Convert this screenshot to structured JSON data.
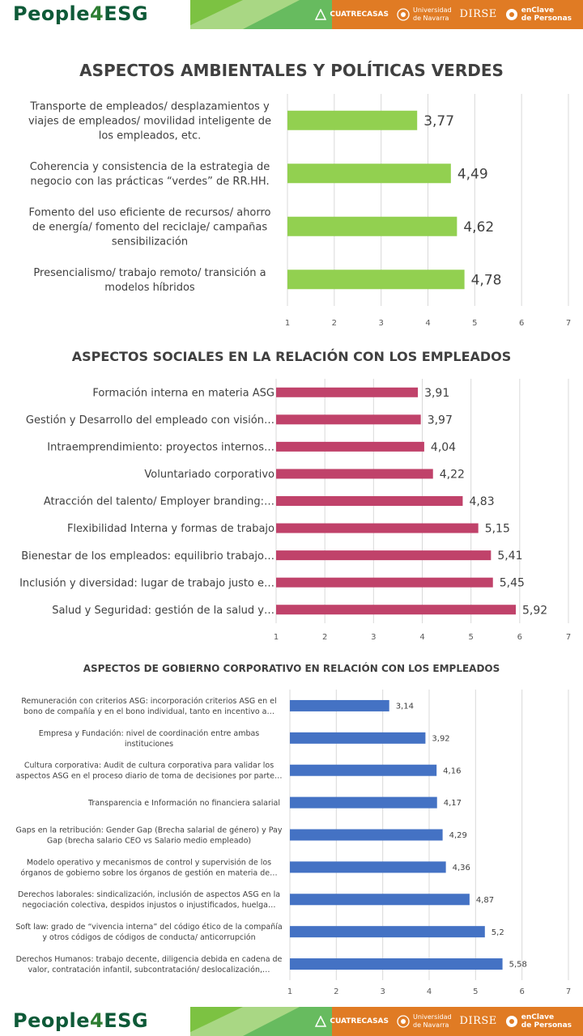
{
  "header": {
    "brand_prefix": "People",
    "brand_digit": "4",
    "brand_suffix": "ESG",
    "partners": [
      {
        "name": "CUATRECASAS",
        "icon": "cuatrecasas-logo-icon"
      },
      {
        "name": "Universidad de Navarra",
        "line1": "Universidad",
        "line2": "de Navarra",
        "icon": "unav-seal-icon"
      },
      {
        "name": "DIRSE"
      },
      {
        "name": "enClave de Personas",
        "line1": "enClave",
        "line2": "de Personas",
        "icon": "enclave-logo-icon"
      }
    ],
    "colors": {
      "green": "#0e5a38",
      "light_green": "#7cc242",
      "orange": "#e07b24"
    }
  },
  "chart_data": [
    {
      "type": "bar",
      "orientation": "horizontal",
      "title": "ASPECTOS AMBIENTALES Y POLÍTICAS VERDES",
      "color": "#92d050",
      "xlim": [
        1,
        7
      ],
      "xticks": [
        "1",
        "2",
        "3",
        "4",
        "5",
        "6",
        "7"
      ],
      "grid": true,
      "categories": [
        [
          "Transporte de empleados/ desplazamientos y",
          "viajes de empleados/ movilidad inteligente de",
          "los empleados, etc."
        ],
        [
          "Coherencia y consistencia de la estrategia de",
          "negocio con las prácticas “verdes” de RR.HH."
        ],
        [
          "Fomento del uso eficiente de recursos/ ahorro",
          "de energía/ fomento del reciclaje/ campañas",
          "sensibilización"
        ],
        [
          "Presencialismo/ trabajo remoto/ transición a",
          "modelos híbridos"
        ]
      ],
      "values": [
        3.77,
        4.49,
        4.62,
        4.78
      ],
      "data_labels": [
        "3,77",
        "4,49",
        "4,62",
        "4,78"
      ]
    },
    {
      "type": "bar",
      "orientation": "horizontal",
      "title": "ASPECTOS SOCIALES EN LA RELACIÓN CON LOS EMPLEADOS",
      "color": "#c0426a",
      "xlim": [
        1,
        7
      ],
      "xticks": [
        "1",
        "2",
        "3",
        "4",
        "5",
        "6",
        "7"
      ],
      "grid": true,
      "categories": [
        [
          "Formación interna en materia ASG"
        ],
        [
          "Gestión y Desarrollo del empleado con visión…"
        ],
        [
          "Intraemprendimiento: proyectos internos…"
        ],
        [
          "Voluntariado corporativo"
        ],
        [
          "Atracción del talento/ Employer branding:…"
        ],
        [
          "Flexibilidad Interna y formas de trabajo"
        ],
        [
          "Bienestar de los empleados: equilibrio trabajo…"
        ],
        [
          "Inclusión y diversidad: lugar de trabajo justo e…"
        ],
        [
          "Salud y Seguridad: gestión de la salud y…"
        ]
      ],
      "values": [
        3.91,
        3.97,
        4.04,
        4.22,
        4.83,
        5.15,
        5.41,
        5.45,
        5.92
      ],
      "data_labels": [
        "3,91",
        "3,97",
        "4,04",
        "4,22",
        "4,83",
        "5,15",
        "5,41",
        "5,45",
        "5,92"
      ]
    },
    {
      "type": "bar",
      "orientation": "horizontal",
      "title": "ASPECTOS DE GOBIERNO CORPORATIVO EN RELACIÓN CON LOS EMPLEADOS",
      "color": "#4472c4",
      "xlim": [
        1,
        7
      ],
      "xticks": [
        "1",
        "2",
        "3",
        "4",
        "5",
        "6",
        "7"
      ],
      "grid": true,
      "categories": [
        [
          "Remuneración con criterios ASG: incorporación criterios ASG en el",
          "bono de compañía y en el bono individual, tanto en incentivo a…"
        ],
        [
          "Empresa y Fundación: nivel de coordinación entre ambas",
          "instituciones"
        ],
        [
          "Cultura corporativa: Audit de cultura corporativa para validar los",
          "aspectos ASG en el proceso diario de toma de decisiones por parte…"
        ],
        [
          "Transparencia e Información no financiera salarial"
        ],
        [
          "Gaps en la retribución: Gender Gap (Brecha salarial de género) y Pay",
          "Gap (brecha salario CEO vs Salario medio empleado)"
        ],
        [
          "Modelo operativo y mecanismos de control y supervisión de los",
          "órganos de gobierno sobre los órganos de gestión en materia de…"
        ],
        [
          "Derechos laborales: sindicalización, inclusión de aspectos ASG en la",
          "negociación colectiva, despidos injustos o injustificados, huelga…"
        ],
        [
          "Soft law:  grado de “vivencia interna” del código ético de la compañía",
          "y otros códigos de códigos de conducta/ anticorrupción"
        ],
        [
          "Derechos Humanos: trabajo decente, diligencia debida en cadena de",
          "valor, contratación infantil, subcontratación/ deslocalización,…"
        ]
      ],
      "values": [
        3.14,
        3.92,
        4.16,
        4.17,
        4.29,
        4.36,
        4.87,
        5.2,
        5.58
      ],
      "data_labels": [
        "3,14",
        "3,92",
        "4,16",
        "4,17",
        "4,29",
        "4,36",
        "4,87",
        "5,2",
        "5,58"
      ]
    }
  ]
}
